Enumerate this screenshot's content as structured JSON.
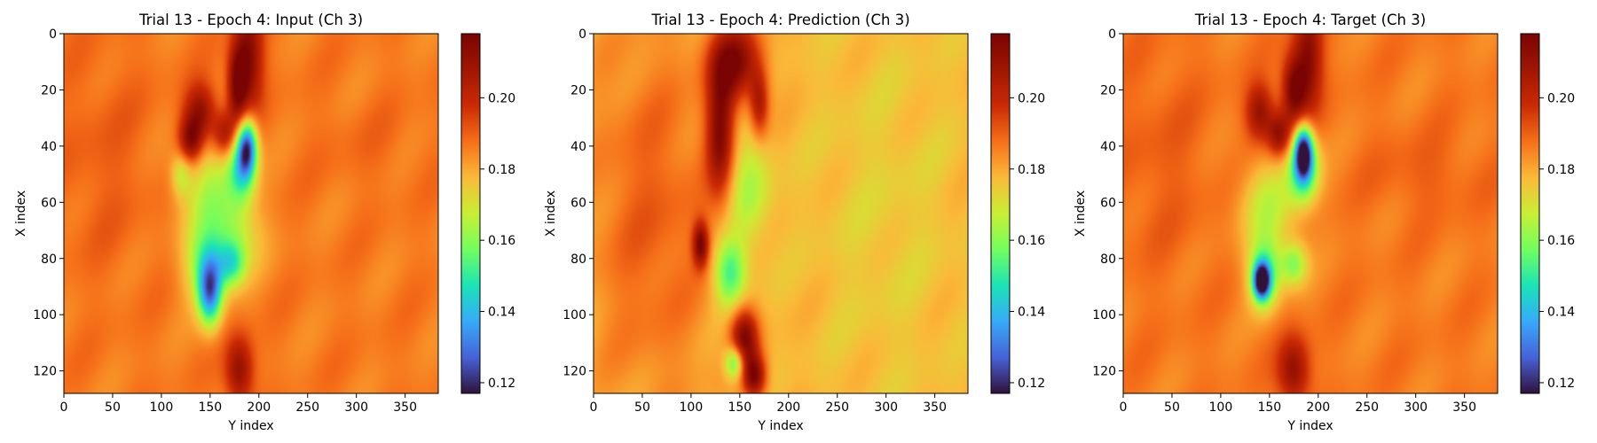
{
  "chart_data": [
    {
      "type": "heatmap",
      "title": "Trial 13 - Epoch 4: Input (Ch 3)",
      "xlabel": "Y index",
      "ylabel": "X index",
      "xlim": [
        0,
        384
      ],
      "ylim": [
        128,
        0
      ],
      "x_ticks": [
        "0",
        "50",
        "100",
        "150",
        "200",
        "250",
        "300",
        "350"
      ],
      "y_ticks": [
        "0",
        "20",
        "40",
        "60",
        "80",
        "100",
        "120"
      ],
      "colorbar": {
        "range": [
          0.117,
          0.218
        ],
        "ticks": [
          "0.12",
          "0.14",
          "0.16",
          "0.18",
          "0.20"
        ],
        "colormap": "turbo"
      },
      "background_value": 0.186,
      "features": [
        {
          "x": 190,
          "y": 8,
          "rx": 14,
          "ry": 20,
          "v": 0.214
        },
        {
          "x": 178,
          "y": 18,
          "rx": 10,
          "ry": 14,
          "v": 0.218
        },
        {
          "x": 140,
          "y": 28,
          "rx": 16,
          "ry": 10,
          "v": 0.212
        },
        {
          "x": 130,
          "y": 38,
          "rx": 12,
          "ry": 8,
          "v": 0.214
        },
        {
          "x": 165,
          "y": 36,
          "rx": 12,
          "ry": 8,
          "v": 0.208
        },
        {
          "x": 188,
          "y": 40,
          "rx": 10,
          "ry": 10,
          "v": 0.132
        },
        {
          "x": 182,
          "y": 48,
          "rx": 14,
          "ry": 12,
          "v": 0.155
        },
        {
          "x": 150,
          "y": 55,
          "rx": 30,
          "ry": 18,
          "v": 0.168
        },
        {
          "x": 120,
          "y": 50,
          "rx": 10,
          "ry": 8,
          "v": 0.17
        },
        {
          "x": 175,
          "y": 72,
          "rx": 28,
          "ry": 14,
          "v": 0.168
        },
        {
          "x": 150,
          "y": 92,
          "rx": 12,
          "ry": 12,
          "v": 0.138
        },
        {
          "x": 145,
          "y": 82,
          "rx": 22,
          "ry": 14,
          "v": 0.162
        },
        {
          "x": 172,
          "y": 82,
          "rx": 14,
          "ry": 8,
          "v": 0.16
        },
        {
          "x": 180,
          "y": 120,
          "rx": 14,
          "ry": 12,
          "v": 0.212
        },
        {
          "x": 40,
          "y": 45,
          "rx": 50,
          "ry": 40,
          "v": 0.19
        },
        {
          "x": 310,
          "y": 40,
          "rx": 60,
          "ry": 15,
          "v": 0.188
        }
      ]
    },
    {
      "type": "heatmap",
      "title": "Trial 13 - Epoch 4: Prediction (Ch 3)",
      "xlabel": "Y index",
      "ylabel": "X index",
      "xlim": [
        0,
        384
      ],
      "ylim": [
        128,
        0
      ],
      "x_ticks": [
        "0",
        "50",
        "100",
        "150",
        "200",
        "250",
        "300",
        "350"
      ],
      "y_ticks": [
        "0",
        "20",
        "40",
        "60",
        "80",
        "100",
        "120"
      ],
      "colorbar": {
        "range": [
          0.117,
          0.218
        ],
        "ticks": [
          "0.12",
          "0.14",
          "0.16",
          "0.18",
          "0.20"
        ],
        "colormap": "turbo"
      },
      "background_value": 0.178,
      "features": [
        {
          "x": 60,
          "y": 64,
          "rx": 70,
          "ry": 70,
          "v": 0.19
        },
        {
          "x": 145,
          "y": 10,
          "rx": 26,
          "ry": 14,
          "v": 0.214
        },
        {
          "x": 130,
          "y": 35,
          "rx": 14,
          "ry": 22,
          "v": 0.212
        },
        {
          "x": 170,
          "y": 25,
          "rx": 10,
          "ry": 12,
          "v": 0.204
        },
        {
          "x": 160,
          "y": 55,
          "rx": 22,
          "ry": 22,
          "v": 0.164
        },
        {
          "x": 140,
          "y": 85,
          "rx": 16,
          "ry": 12,
          "v": 0.15
        },
        {
          "x": 110,
          "y": 75,
          "rx": 8,
          "ry": 8,
          "v": 0.212
        },
        {
          "x": 155,
          "y": 108,
          "rx": 14,
          "ry": 10,
          "v": 0.214
        },
        {
          "x": 145,
          "y": 117,
          "rx": 10,
          "ry": 6,
          "v": 0.148
        },
        {
          "x": 165,
          "y": 122,
          "rx": 12,
          "ry": 8,
          "v": 0.216
        },
        {
          "x": 300,
          "y": 64,
          "rx": 80,
          "ry": 70,
          "v": 0.174
        }
      ]
    },
    {
      "type": "heatmap",
      "title": "Trial 13 - Epoch 4: Target (Ch 3)",
      "xlabel": "Y index",
      "ylabel": "X index",
      "xlim": [
        0,
        384
      ],
      "ylim": [
        128,
        0
      ],
      "x_ticks": [
        "0",
        "50",
        "100",
        "150",
        "200",
        "250",
        "300",
        "350"
      ],
      "y_ticks": [
        "0",
        "20",
        "40",
        "60",
        "80",
        "100",
        "120"
      ],
      "colorbar": {
        "range": [
          0.117,
          0.218
        ],
        "ticks": [
          "0.12",
          "0.14",
          "0.16",
          "0.18",
          "0.20"
        ],
        "colormap": "turbo"
      },
      "background_value": 0.186,
      "features": [
        {
          "x": 190,
          "y": 8,
          "rx": 14,
          "ry": 20,
          "v": 0.214
        },
        {
          "x": 175,
          "y": 20,
          "rx": 12,
          "ry": 12,
          "v": 0.218
        },
        {
          "x": 140,
          "y": 28,
          "rx": 14,
          "ry": 10,
          "v": 0.21
        },
        {
          "x": 160,
          "y": 36,
          "rx": 12,
          "ry": 8,
          "v": 0.212
        },
        {
          "x": 185,
          "y": 42,
          "rx": 9,
          "ry": 9,
          "v": 0.125
        },
        {
          "x": 185,
          "y": 48,
          "rx": 16,
          "ry": 12,
          "v": 0.15
        },
        {
          "x": 150,
          "y": 62,
          "rx": 30,
          "ry": 18,
          "v": 0.168
        },
        {
          "x": 142,
          "y": 88,
          "rx": 8,
          "ry": 6,
          "v": 0.122
        },
        {
          "x": 145,
          "y": 86,
          "rx": 16,
          "ry": 12,
          "v": 0.152
        },
        {
          "x": 175,
          "y": 82,
          "rx": 14,
          "ry": 8,
          "v": 0.162
        },
        {
          "x": 175,
          "y": 120,
          "rx": 16,
          "ry": 12,
          "v": 0.212
        },
        {
          "x": 40,
          "y": 45,
          "rx": 50,
          "ry": 40,
          "v": 0.19
        },
        {
          "x": 310,
          "y": 50,
          "rx": 60,
          "ry": 15,
          "v": 0.19
        }
      ]
    }
  ]
}
